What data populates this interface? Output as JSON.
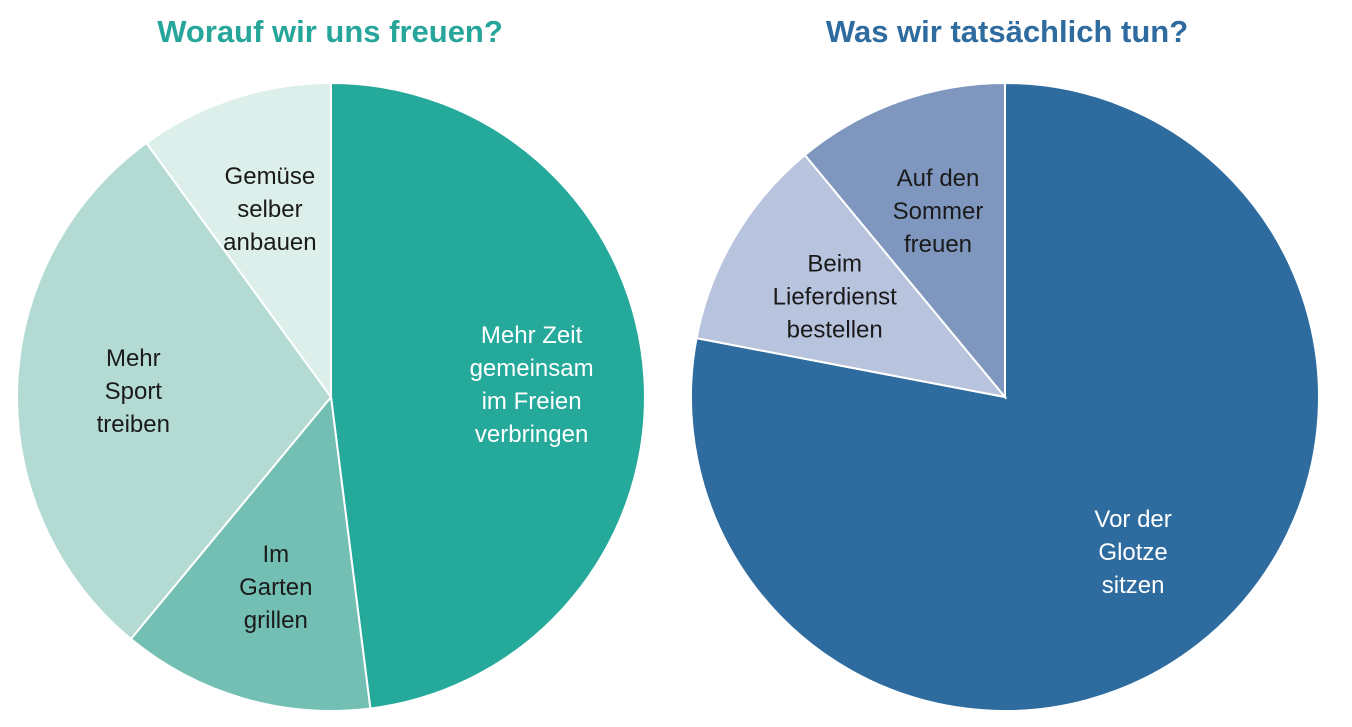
{
  "chart_data": [
    {
      "type": "pie",
      "title": "Worauf wir uns freuen?",
      "title_color": "#26a59a",
      "slices": [
        {
          "label": [
            "Mehr Zeit",
            "gemeinsam",
            "im Freien",
            "verbringen"
          ],
          "value": 48,
          "color": "#24a99b",
          "label_color": "#ffffff"
        },
        {
          "label": [
            "Im",
            "Garten",
            "grillen"
          ],
          "value": 13,
          "color": "#74bfb3",
          "label_color": "#1a1a1a"
        },
        {
          "label": [
            "Mehr",
            "Sport",
            "treiben"
          ],
          "value": 29,
          "color": "#b3dbd4",
          "label_color": "#1a1a1a"
        },
        {
          "label": [
            "Gemüse",
            "selber",
            "anbauen"
          ],
          "value": 10,
          "color": "#dcefeb",
          "label_color": "#1a1a1a"
        }
      ]
    },
    {
      "type": "pie",
      "title": "Was wir tatsächlich tun?",
      "title_color": "#2e6b9e",
      "slices": [
        {
          "label": [
            "Vor der",
            "Glotze",
            "sitzen"
          ],
          "value": 78,
          "color": "#2e6b9e",
          "label_color": "#ffffff"
        },
        {
          "label": [
            "Beim",
            "Lieferdienst",
            "bestellen"
          ],
          "value": 11,
          "color": "#b8c3de",
          "label_color": "#1a1a1a"
        },
        {
          "label": [
            "Auf den",
            "Sommer",
            "freuen"
          ],
          "value": 11,
          "color": "#7f97bf",
          "label_color": "#1a1a1a"
        }
      ]
    }
  ]
}
